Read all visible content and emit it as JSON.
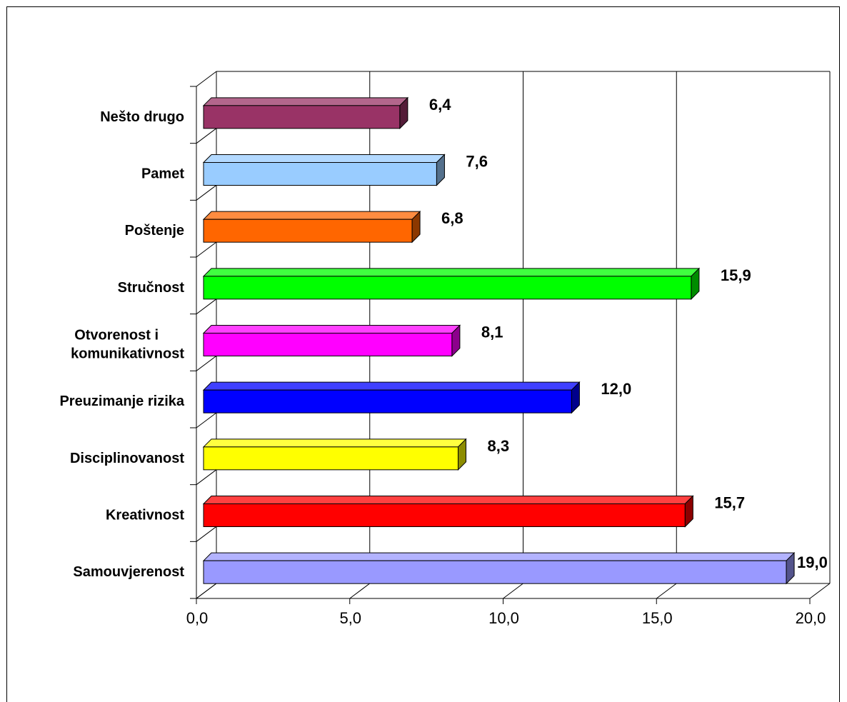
{
  "chart_data": {
    "type": "bar",
    "orientation": "horizontal",
    "style": "3d",
    "title": "",
    "xlabel": "",
    "ylabel": "",
    "xlim": [
      0,
      20
    ],
    "x_ticks": [
      "0,0",
      "5,0",
      "10,0",
      "15,0",
      "20,0"
    ],
    "grid": true,
    "legend": "none",
    "categories": [
      "Samouvjerenost",
      "Kreativnost",
      "Disciplinovanost",
      "Preuzimanje rizika",
      "Otvorenost i komunikativnost",
      "Stručnost",
      "Poštenje",
      "Pamet",
      "Nešto drugo"
    ],
    "category_label_lines": [
      [
        "Samouvjerenost"
      ],
      [
        "Kreativnost"
      ],
      [
        "Disciplinovanost"
      ],
      [
        "Preuzimanje rizika"
      ],
      [
        "Otvorenost i",
        "komunikativnost"
      ],
      [
        "Stručnost"
      ],
      [
        "Poštenje"
      ],
      [
        "Pamet"
      ],
      [
        "Nešto drugo"
      ]
    ],
    "values": [
      19.0,
      15.7,
      8.3,
      12.0,
      8.1,
      15.9,
      6.8,
      7.6,
      6.4
    ],
    "data_labels": [
      "19,0",
      "15,7",
      "8,3",
      "12,0",
      "8,1",
      "15,9",
      "6,8",
      "7,6",
      "6,4"
    ],
    "colors": [
      "#9999FF",
      "#FF0000",
      "#FFFF00",
      "#0000FF",
      "#FF00FF",
      "#00FF00",
      "#FF6600",
      "#99CCFF",
      "#993366"
    ]
  }
}
